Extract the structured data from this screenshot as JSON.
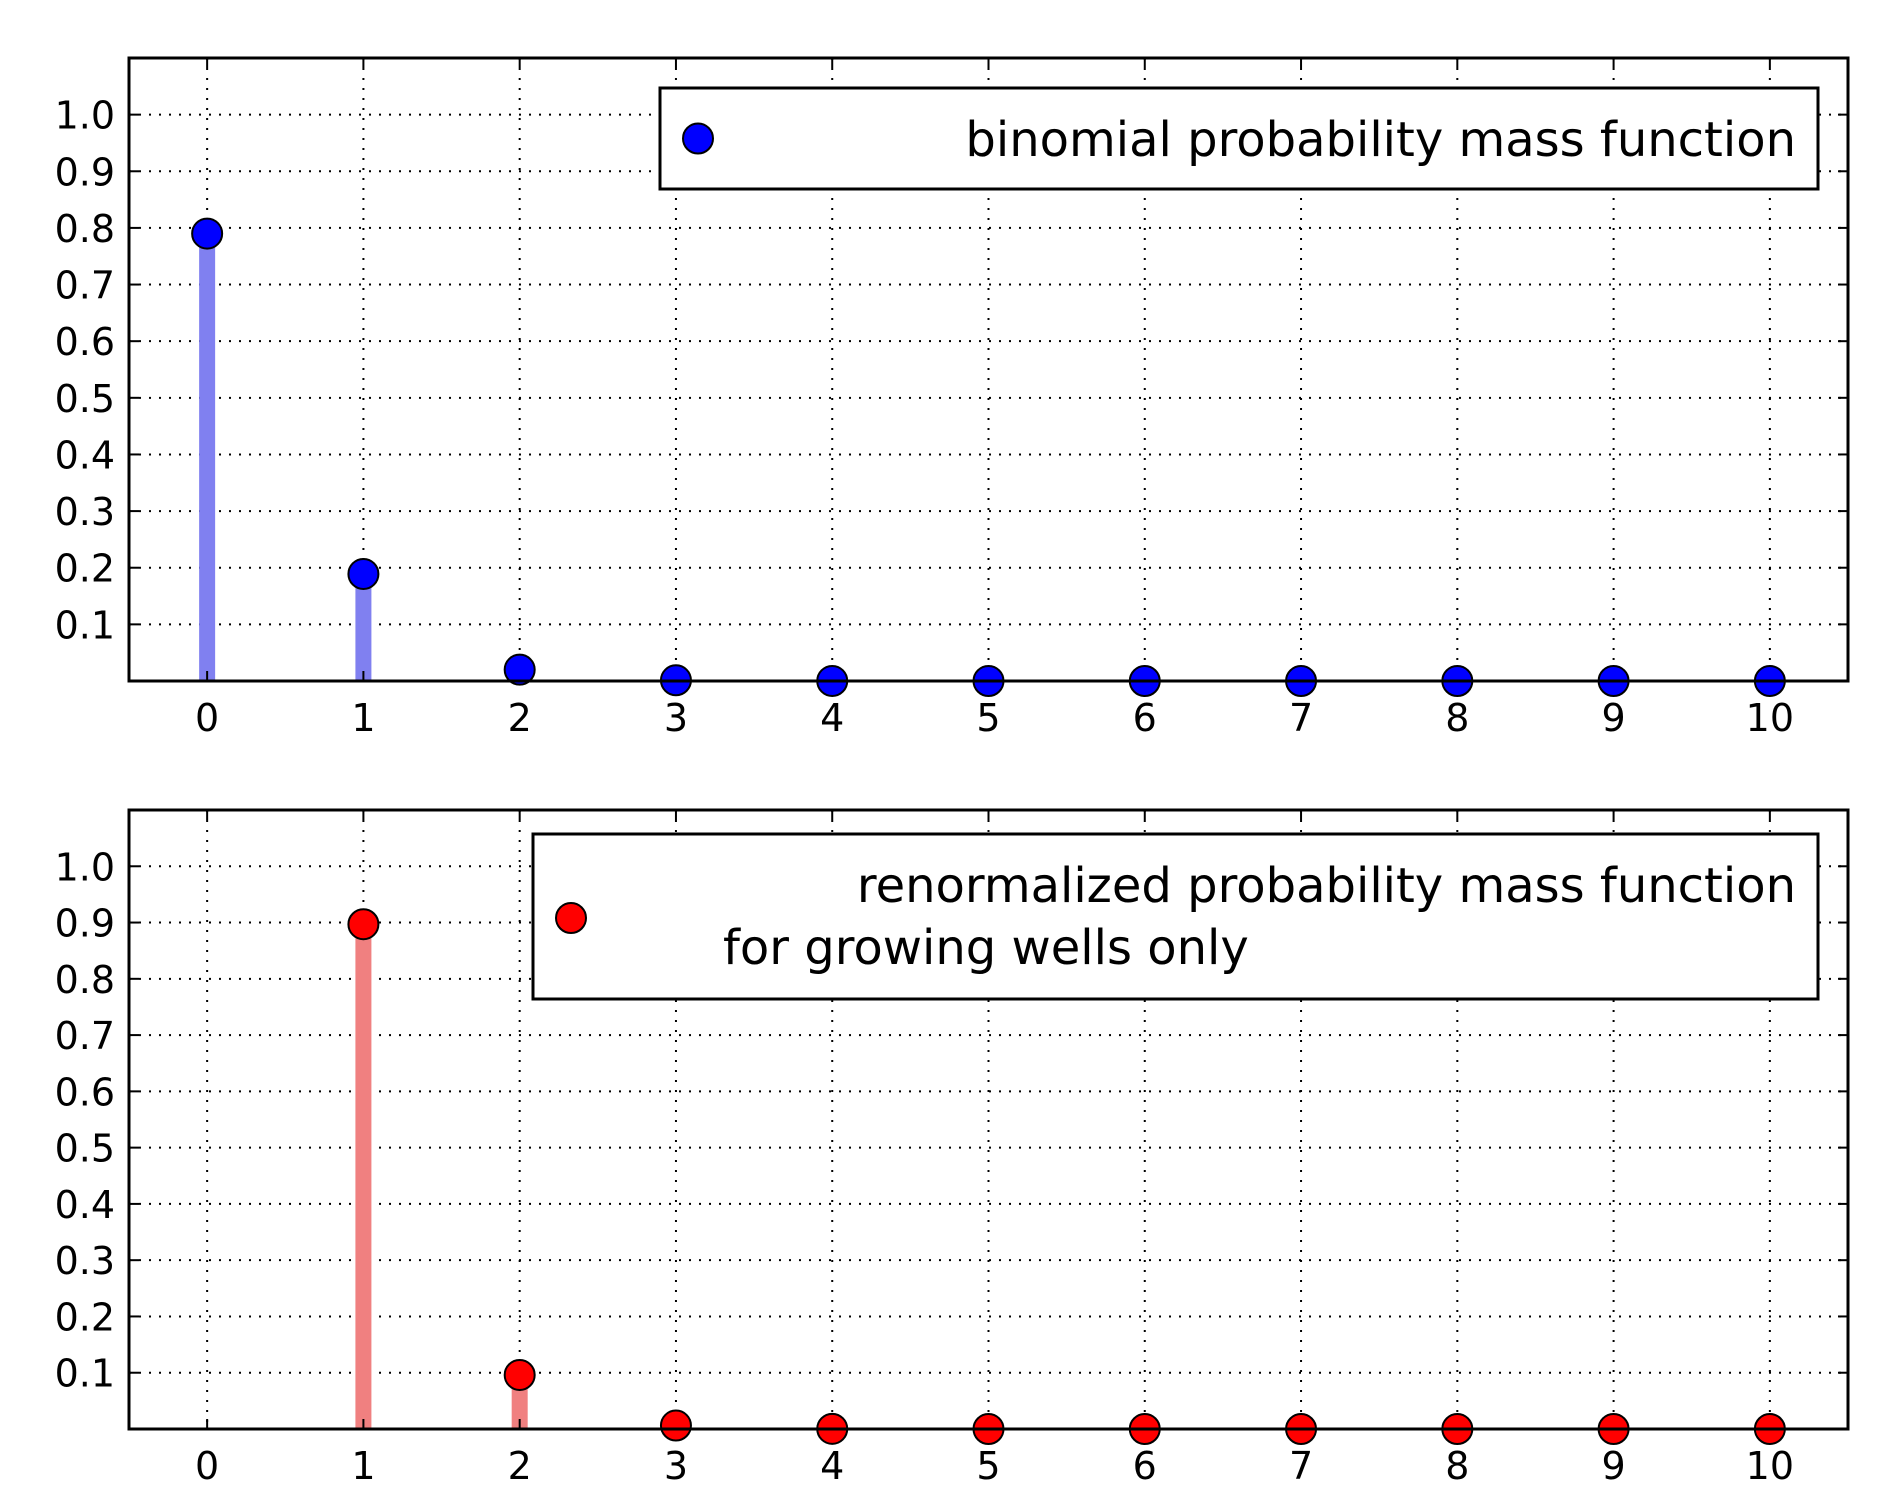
{
  "chart_data": [
    {
      "type": "stem",
      "title": "",
      "xlabel": "",
      "ylabel": "",
      "xlim": [
        -0.5,
        10.5
      ],
      "ylim": [
        0,
        1.1
      ],
      "grid": true,
      "x": [
        0,
        1,
        2,
        3,
        4,
        5,
        6,
        7,
        8,
        9,
        10
      ],
      "xtick_labels": [
        "0",
        "1",
        "2",
        "3",
        "4",
        "5",
        "6",
        "7",
        "8",
        "9",
        "10"
      ],
      "ytick_labels": [
        "0.1",
        "0.2",
        "0.3",
        "0.4",
        "0.5",
        "0.6",
        "0.7",
        "0.8",
        "0.9",
        "1.0"
      ],
      "yticks": [
        0.1,
        0.2,
        0.3,
        0.4,
        0.5,
        0.6,
        0.7,
        0.8,
        0.9,
        1.0
      ],
      "series": [
        {
          "name": "binomial probability mass function",
          "legend_lines": [
            "binomial probability mass function"
          ],
          "marker_color": "#0000ff",
          "stem_color": "#8080f0",
          "values": [
            0.79,
            0.189,
            0.02,
            0.0013,
            0.0001,
            0,
            0,
            0,
            0,
            0,
            0
          ]
        }
      ],
      "legend_position": "top-right"
    },
    {
      "type": "stem",
      "title": "",
      "xlabel": "",
      "ylabel": "",
      "xlim": [
        -0.5,
        10.5
      ],
      "ylim": [
        0,
        1.1
      ],
      "grid": true,
      "x": [
        0,
        1,
        2,
        3,
        4,
        5,
        6,
        7,
        8,
        9,
        10
      ],
      "xtick_labels": [
        "0",
        "1",
        "2",
        "3",
        "4",
        "5",
        "6",
        "7",
        "8",
        "9",
        "10"
      ],
      "ytick_labels": [
        "0.1",
        "0.2",
        "0.3",
        "0.4",
        "0.5",
        "0.6",
        "0.7",
        "0.8",
        "0.9",
        "1.0"
      ],
      "yticks": [
        0.1,
        0.2,
        0.3,
        0.4,
        0.5,
        0.6,
        0.7,
        0.8,
        0.9,
        1.0
      ],
      "series": [
        {
          "name": "renormalized probability mass function for growing wells only",
          "legend_lines": [
            "renormalized probability mass function",
            " for growing wells only"
          ],
          "marker_color": "#ff0000",
          "stem_color": "#f08080",
          "values": [
            null,
            0.897,
            0.096,
            0.0062,
            0.0003,
            0,
            0,
            0,
            0,
            0,
            0
          ]
        }
      ],
      "legend_position": "top-right"
    }
  ]
}
